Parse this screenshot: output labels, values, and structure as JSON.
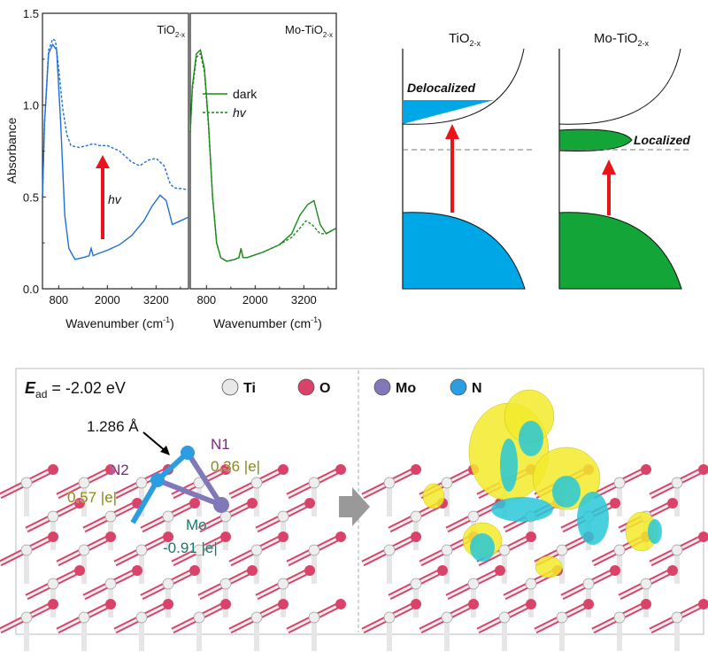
{
  "chart_data": [
    {
      "type": "line",
      "panel_label": "TiO",
      "panel_label_sub": "2-x",
      "xlabel": "Wavenumber (cm",
      "xlabel_sup": "-1",
      "xlabel_end": ")",
      "ylabel": "Absorbance",
      "xlim": [
        400,
        4000
      ],
      "ylim": [
        0,
        1.5
      ],
      "xticks": [
        800,
        2000,
        3200
      ],
      "yticks": [
        "0.0",
        "0.5",
        "1.0",
        "1.5"
      ],
      "ytick_values": [
        0,
        0.5,
        1.0,
        1.5
      ],
      "annotation": "hv",
      "series": [
        {
          "style": "solid",
          "color": "#1f6fd6",
          "x": [
            400,
            450,
            550,
            650,
            750,
            850,
            950,
            1050,
            1200,
            1400,
            1550,
            1600,
            1650,
            1750,
            2000,
            2300,
            2600,
            2900,
            3100,
            3300,
            3450,
            3600,
            3800,
            4000
          ],
          "y": [
            0.5,
            0.9,
            1.28,
            1.33,
            1.3,
            0.9,
            0.4,
            0.22,
            0.16,
            0.17,
            0.18,
            0.22,
            0.18,
            0.19,
            0.21,
            0.24,
            0.29,
            0.37,
            0.45,
            0.51,
            0.48,
            0.35,
            0.37,
            0.39
          ]
        },
        {
          "style": "dashed",
          "color": "#1f6fd6",
          "x": [
            400,
            450,
            550,
            650,
            720,
            800,
            900,
            1000,
            1100,
            1300,
            1500,
            1650,
            1800,
            2000,
            2300,
            2600,
            2800,
            3000,
            3200,
            3400,
            3550,
            3650,
            4000
          ],
          "y": [
            0.5,
            0.9,
            1.3,
            1.36,
            1.35,
            1.2,
            0.98,
            0.84,
            0.78,
            0.77,
            0.78,
            0.79,
            0.78,
            0.78,
            0.75,
            0.69,
            0.67,
            0.7,
            0.71,
            0.67,
            0.57,
            0.55,
            0.54
          ]
        }
      ]
    },
    {
      "type": "line",
      "panel_label": "Mo-TiO",
      "panel_label_sub": "2-x",
      "xlabel": "Wavenumber (cm",
      "xlabel_sup": "-1",
      "xlabel_end": ")",
      "xlim": [
        400,
        4000
      ],
      "ylim": [
        0,
        1.5
      ],
      "xticks": [
        800,
        2000,
        3200
      ],
      "legend": [
        {
          "label": "dark",
          "style": "solid"
        },
        {
          "label": "hv",
          "style": "dashed"
        }
      ],
      "legend_position": "upper-center",
      "series": [
        {
          "name": "dark",
          "style": "solid",
          "color": "#1a8a1a",
          "x": [
            400,
            450,
            550,
            650,
            750,
            850,
            950,
            1050,
            1150,
            1300,
            1500,
            1600,
            1650,
            1700,
            1800,
            2200,
            2600,
            2900,
            3100,
            3300,
            3450,
            3600,
            3750,
            4000
          ],
          "y": [
            0.85,
            1.1,
            1.28,
            1.3,
            1.2,
            0.9,
            0.5,
            0.25,
            0.17,
            0.15,
            0.16,
            0.17,
            0.22,
            0.17,
            0.17,
            0.2,
            0.24,
            0.3,
            0.4,
            0.46,
            0.48,
            0.35,
            0.3,
            0.33
          ]
        },
        {
          "name": "hv",
          "style": "dashed",
          "color": "#1a8a1a",
          "x": [
            400,
            450,
            550,
            650,
            750,
            850,
            950,
            1050,
            1150,
            1300,
            1500,
            1600,
            1650,
            1700,
            1800,
            2200,
            2600,
            2900,
            3100,
            3250,
            3400,
            3600,
            3750,
            4000
          ],
          "y": [
            0.85,
            1.08,
            1.26,
            1.28,
            1.18,
            0.88,
            0.5,
            0.25,
            0.17,
            0.15,
            0.16,
            0.17,
            0.22,
            0.17,
            0.17,
            0.2,
            0.24,
            0.28,
            0.33,
            0.37,
            0.35,
            0.3,
            0.3,
            0.33
          ]
        }
      ]
    }
  ],
  "band_diagrams": [
    {
      "title": "TiO",
      "title_sub": "2-x",
      "state_label": "Delocalized",
      "fill": "#00a7e6"
    },
    {
      "title": "Mo-TiO",
      "title_sub": "2-x",
      "state_label": "Localized",
      "fill": "#13a538"
    }
  ],
  "structure_panel": {
    "energy_symbol": "E",
    "energy_sub": "ad",
    "energy_value": " = -2.02 eV",
    "legend": [
      {
        "label": "Ti",
        "color": "#e8e8e8"
      },
      {
        "label": "O",
        "color": "#d9436a"
      },
      {
        "label": "Mo",
        "color": "#8078b8"
      },
      {
        "label": "N",
        "color": "#2b9de0"
      }
    ],
    "bond_length": "1.286 Å",
    "n1_label": "N1",
    "n1_charge": "0.36 |e|",
    "n2_label": "N2",
    "n2_charge": "0.57 |e|",
    "mo_label": "Mo",
    "mo_charge": "-0.91 |e|"
  }
}
